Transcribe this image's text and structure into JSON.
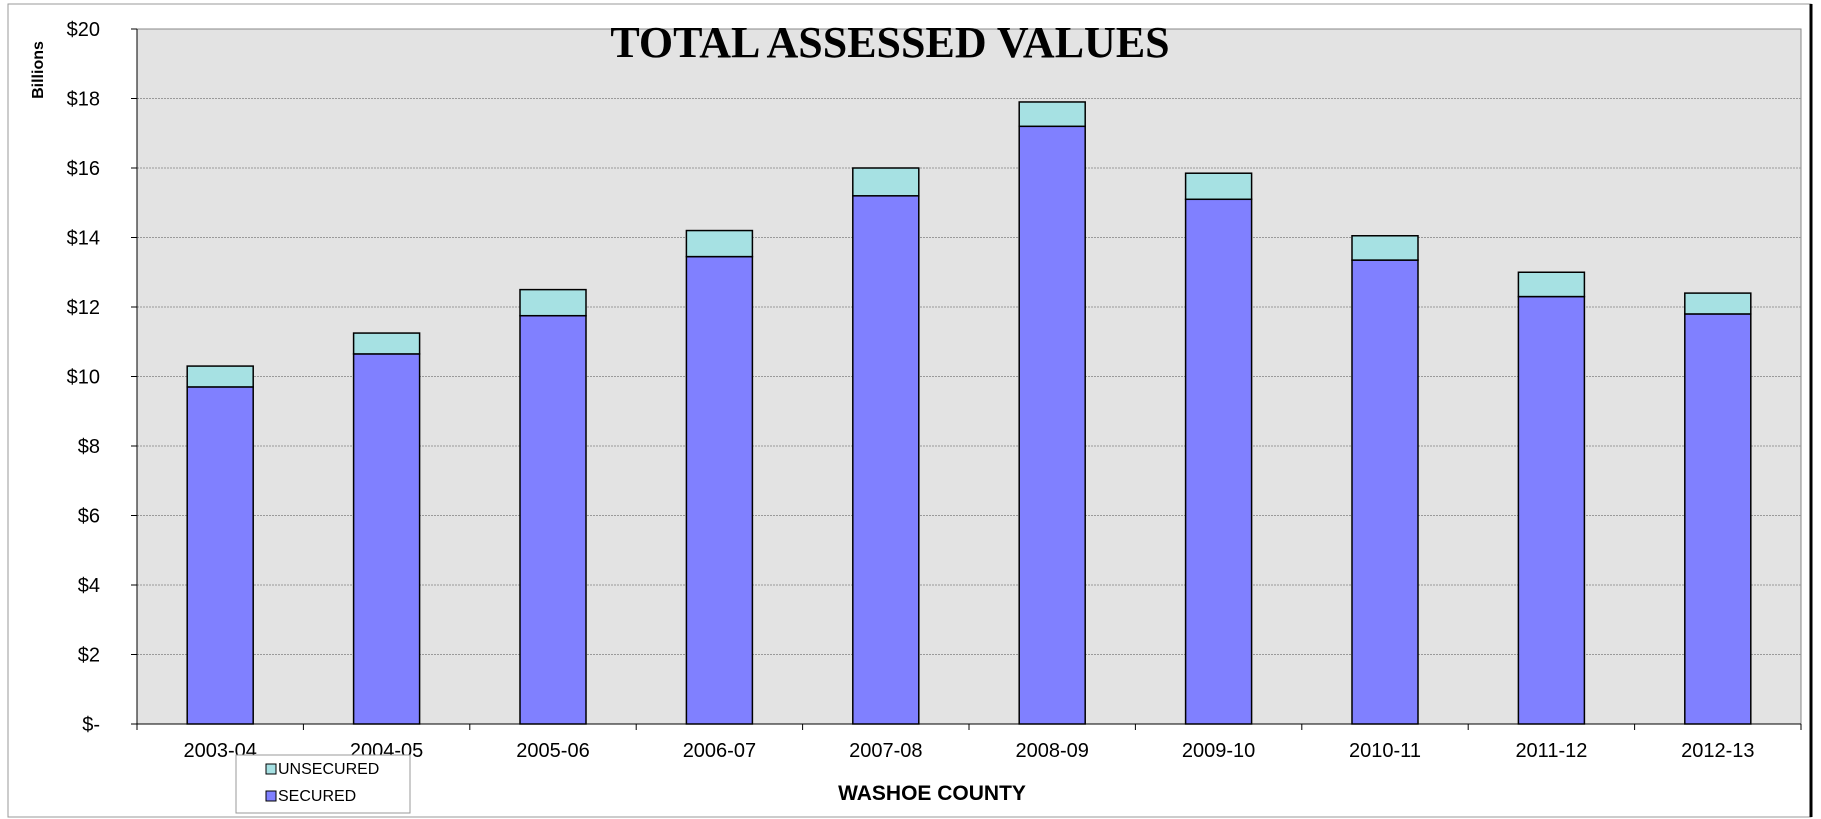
{
  "chart_data": {
    "type": "bar",
    "stacked": true,
    "title": "TOTAL ASSESSED VALUES",
    "xlabel": "WASHOE COUNTY",
    "ylabel": "Billions",
    "ylim": [
      0,
      20
    ],
    "yticks": [
      "$-",
      "$2",
      "$4",
      "$6",
      "$8",
      "$10",
      "$12",
      "$14",
      "$16",
      "$18",
      "$20"
    ],
    "grid": true,
    "legend_position": "bottom-left",
    "categories": [
      "2003-04",
      "2004-05",
      "2005-06",
      "2006-07",
      "2007-08",
      "2008-09",
      "2009-10",
      "2010-11",
      "2011-12",
      "2012-13"
    ],
    "series": [
      {
        "name": "SECURED",
        "color": "#8080ff",
        "values": [
          9.7,
          10.65,
          11.75,
          13.45,
          15.2,
          17.2,
          15.1,
          13.35,
          12.3,
          11.8
        ]
      },
      {
        "name": "UNSECURED",
        "color": "#a6e1e3",
        "values": [
          0.6,
          0.6,
          0.75,
          0.75,
          0.8,
          0.7,
          0.75,
          0.7,
          0.7,
          0.6
        ]
      }
    ],
    "legend_order": [
      "UNSECURED",
      "SECURED"
    ],
    "plot_background": "#e3e3e3"
  }
}
